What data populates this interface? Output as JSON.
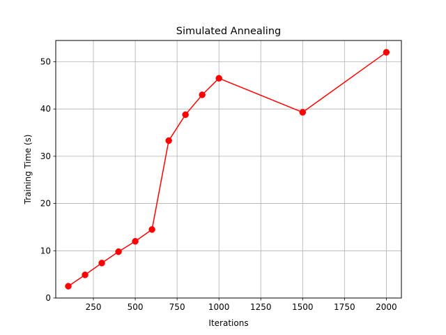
{
  "chart_data": {
    "type": "line",
    "title": "Simulated Annealing",
    "xlabel": "Iterations",
    "ylabel": "Training Time (s)",
    "xlim": [
      25,
      2090
    ],
    "ylim": [
      0,
      54.5
    ],
    "xticks": [
      250,
      500,
      750,
      1000,
      1250,
      1500,
      1750,
      2000
    ],
    "yticks": [
      0,
      10,
      20,
      30,
      40,
      50
    ],
    "grid": true,
    "series": [
      {
        "color": "#ff0000",
        "marker": "circle",
        "x": [
          100,
          200,
          300,
          400,
          500,
          600,
          700,
          800,
          900,
          1000,
          1500,
          2000
        ],
        "y": [
          2.5,
          4.9,
          7.4,
          9.8,
          12.0,
          14.5,
          33.3,
          38.8,
          43.0,
          46.5,
          39.3,
          52.0
        ]
      }
    ]
  }
}
